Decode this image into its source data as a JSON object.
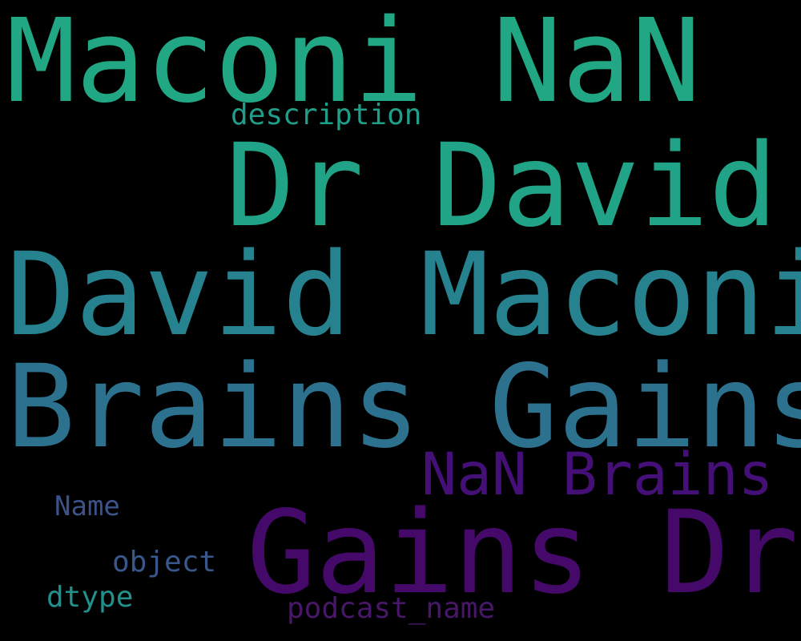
{
  "background": "#000000",
  "words": [
    {
      "text": "Maconi NaN",
      "color": "#22a784"
    },
    {
      "text": "description",
      "color": "#1f9e89"
    },
    {
      "text": "Dr David",
      "color": "#20a386"
    },
    {
      "text": "David Maconi",
      "color": "#26828e"
    },
    {
      "text": "Brains Gains",
      "color": "#2c728e"
    },
    {
      "text": "NaN Brains",
      "color": "#440f76"
    },
    {
      "text": "Name",
      "color": "#3b528b"
    },
    {
      "text": "Gains Dr",
      "color": "#450a69"
    },
    {
      "text": "object",
      "color": "#38588c"
    },
    {
      "text": "dtype",
      "color": "#21918c"
    },
    {
      "text": "podcast_name",
      "color": "#481769"
    }
  ]
}
